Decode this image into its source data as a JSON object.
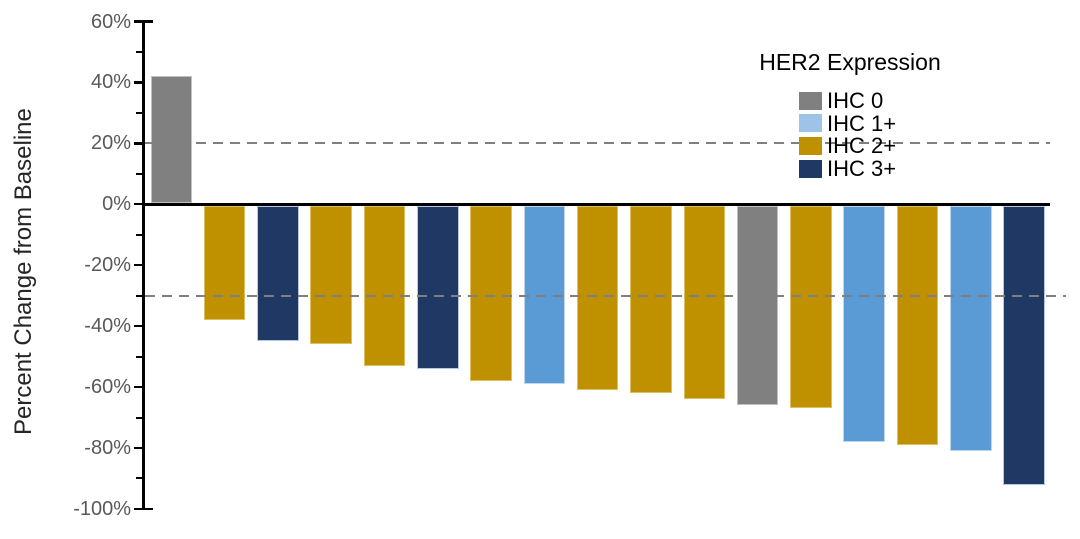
{
  "chart_data": {
    "type": "bar",
    "subtype": "waterfall",
    "title": "",
    "xlabel": "",
    "ylabel": "Percent Change from Baseline",
    "ylim": [
      -100,
      60
    ],
    "ytick_major_interval": 20,
    "ytick_minor_interval": 10,
    "ytick_labels": [
      "60%",
      "40%",
      "20%",
      "0%",
      "-20%",
      "-40%",
      "-60%",
      "-80%",
      "-100%"
    ],
    "ytick_values": [
      60,
      40,
      20,
      0,
      -20,
      -40,
      -60,
      -80,
      -100
    ],
    "grid": "off",
    "reference_lines": [
      {
        "value": 20,
        "style": "dashed",
        "color": "#7f7f7f"
      },
      {
        "value": -30,
        "style": "dashed",
        "color": "#7f7f7f"
      }
    ],
    "legend": {
      "title": "HER2 Expression",
      "position": "top-right",
      "entries": [
        {
          "label": "IHC 0",
          "swatch_color": "#808080"
        },
        {
          "label": "IHC 1+",
          "swatch_color": "#9dc3e6"
        },
        {
          "label": "IHC 2+",
          "swatch_color": "#bf9000"
        },
        {
          "label": "IHC 3+",
          "swatch_color": "#1f3864"
        }
      ]
    },
    "group_colors": {
      "IHC 0": {
        "fill": "#808080",
        "edge": "#c0c0c0"
      },
      "IHC 1+": {
        "fill": "#5b9bd5",
        "edge": "#bdd7ee"
      },
      "IHC 2+": {
        "fill": "#bf9000",
        "edge": "#dcc05e"
      },
      "IHC 3+": {
        "fill": "#1f3864",
        "edge": "#b4c7e7"
      }
    },
    "bars": [
      {
        "group": "IHC 0",
        "value": 42
      },
      {
        "group": "IHC 2+",
        "value": -38
      },
      {
        "group": "IHC 3+",
        "value": -45
      },
      {
        "group": "IHC 2+",
        "value": -46
      },
      {
        "group": "IHC 2+",
        "value": -53
      },
      {
        "group": "IHC 3+",
        "value": -54
      },
      {
        "group": "IHC 2+",
        "value": -58
      },
      {
        "group": "IHC 1+",
        "value": -59
      },
      {
        "group": "IHC 2+",
        "value": -61
      },
      {
        "group": "IHC 2+",
        "value": -62
      },
      {
        "group": "IHC 2+",
        "value": -64
      },
      {
        "group": "IHC 0",
        "value": -66
      },
      {
        "group": "IHC 2+",
        "value": -67
      },
      {
        "group": "IHC 1+",
        "value": -78
      },
      {
        "group": "IHC 2+",
        "value": -79
      },
      {
        "group": "IHC 1+",
        "value": -81
      },
      {
        "group": "IHC 3+",
        "value": -92
      }
    ],
    "axis_color": "#000000",
    "tick_label_color": "#595959",
    "zero_line_color": "#000000"
  }
}
